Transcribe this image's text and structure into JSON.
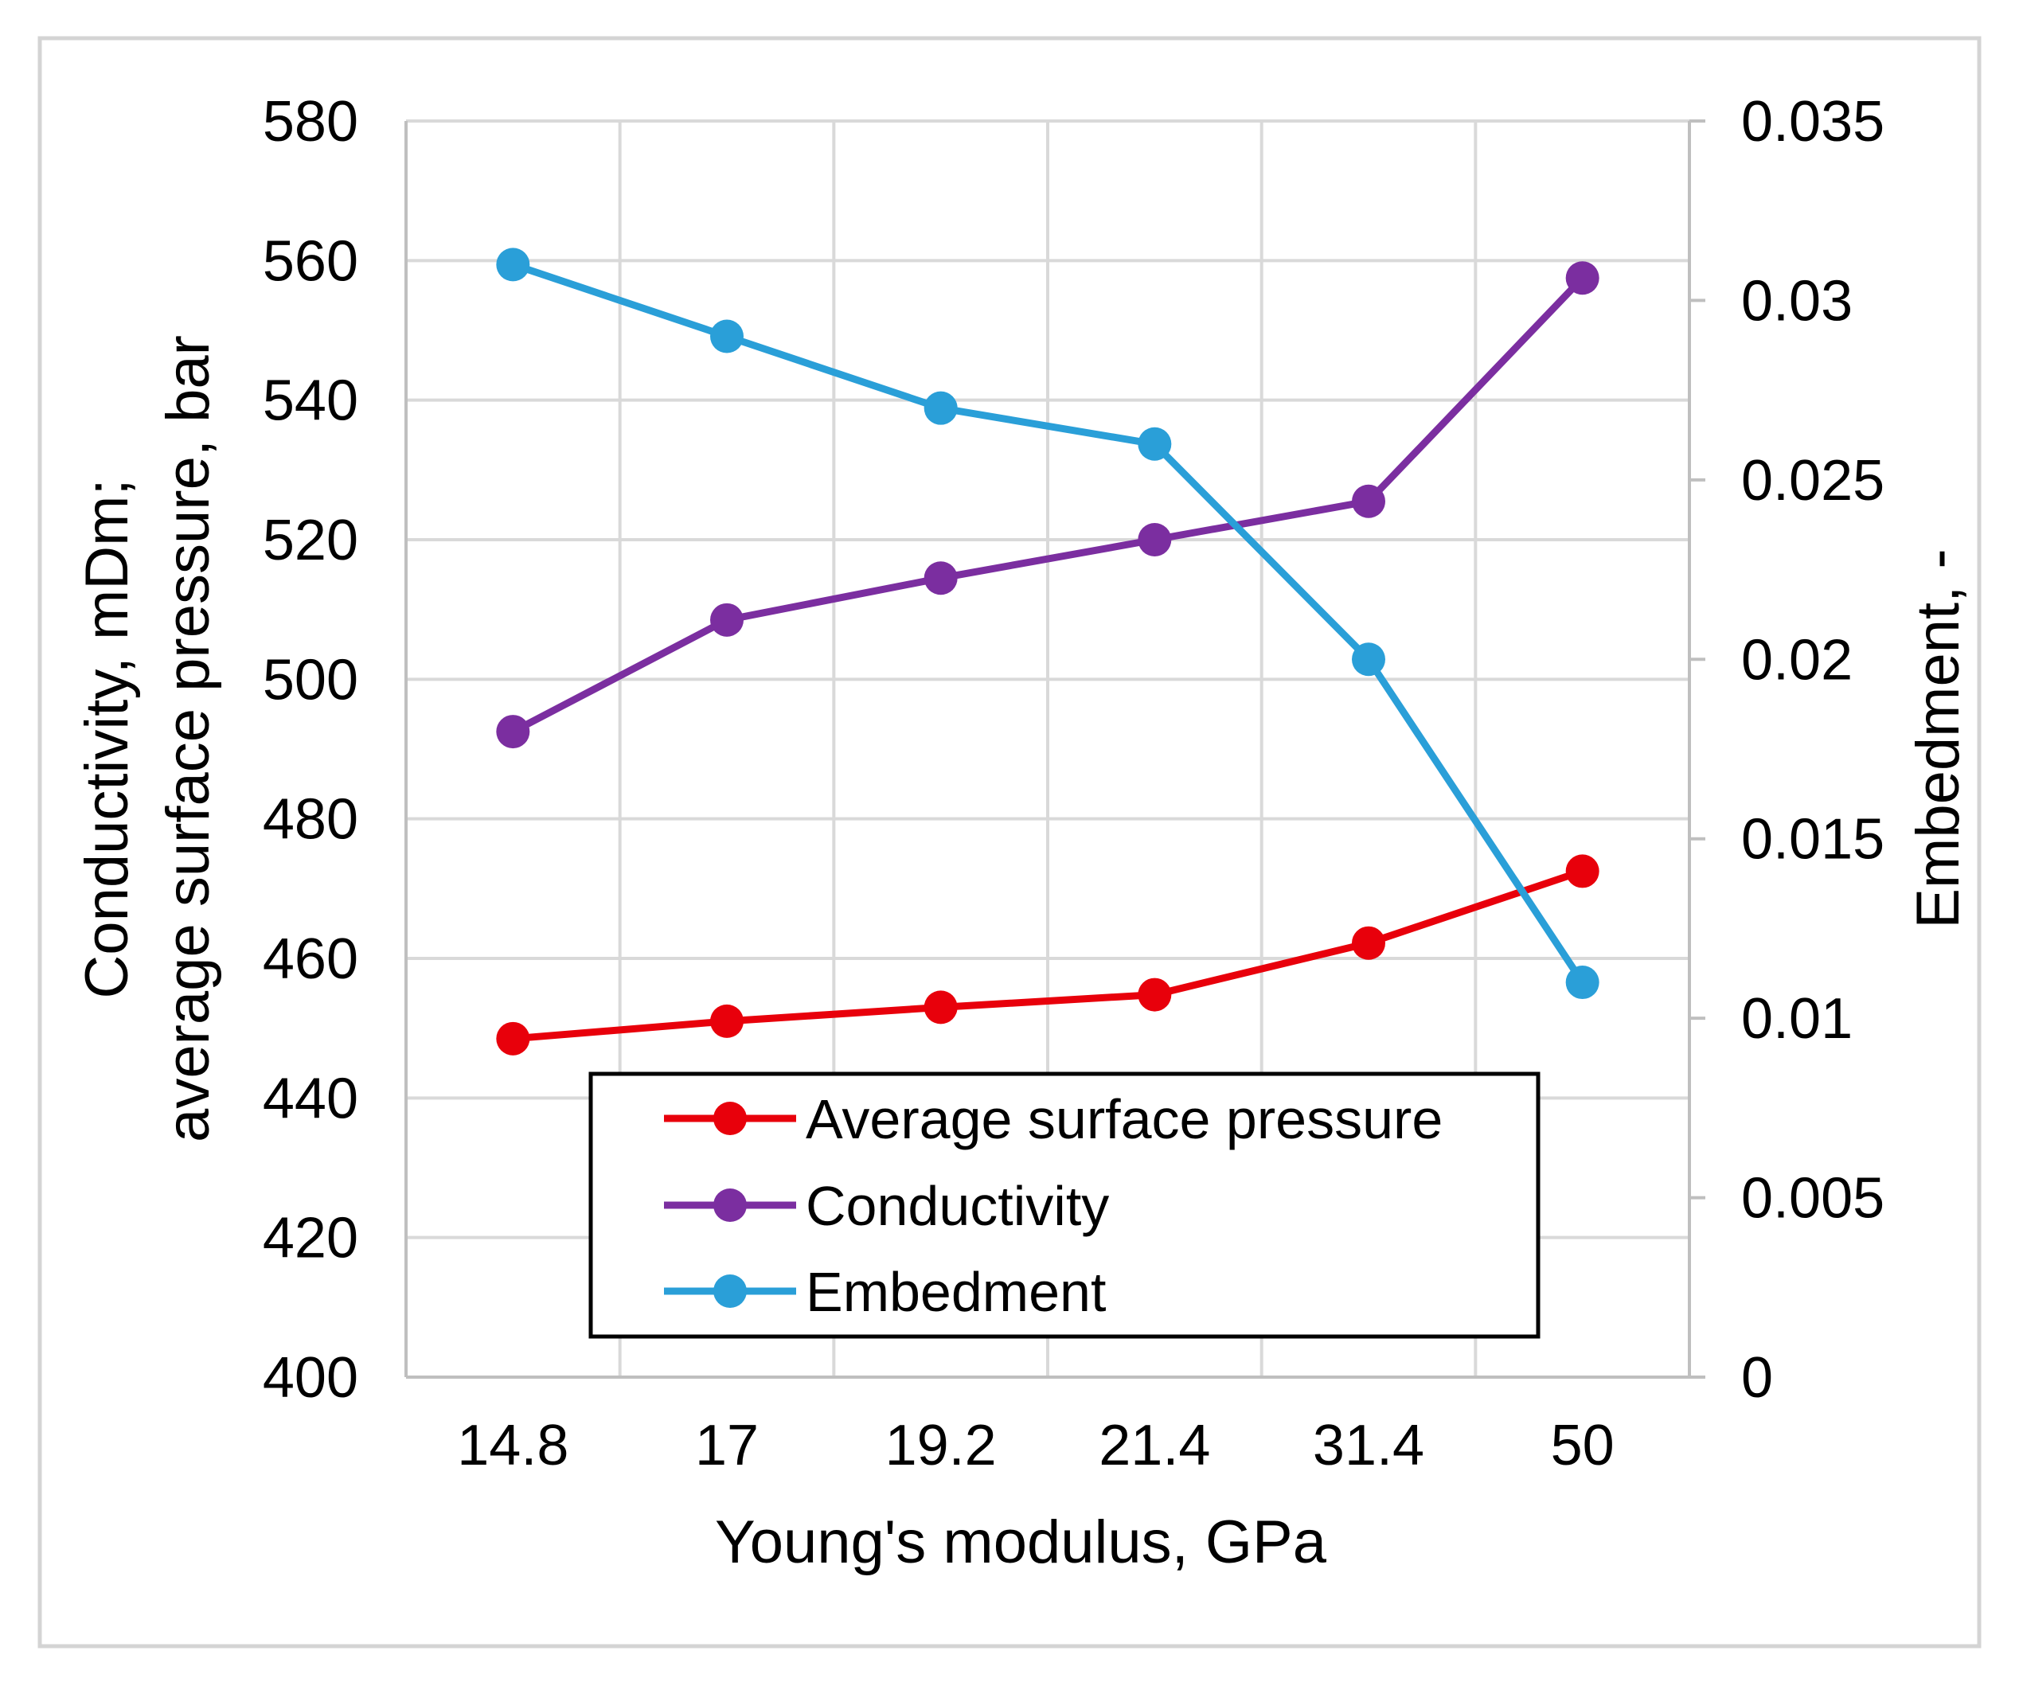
{
  "chart_data": {
    "type": "line",
    "title": "",
    "xlabel": "Young's modulus, GPa",
    "ylabel_line1": "Conductivity, mDm;",
    "ylabel_line2": "average surface pressure, bar",
    "y2label": "Embedment, -",
    "categories": [
      "14.8",
      "17",
      "19.2",
      "21.4",
      "31.4",
      "50"
    ],
    "ylim": [
      400,
      580
    ],
    "yticks": [
      400,
      420,
      440,
      460,
      480,
      500,
      520,
      540,
      560,
      580
    ],
    "ytick_labels": [
      "400",
      "420",
      "440",
      "460",
      "480",
      "500",
      "520",
      "540",
      "560",
      "580"
    ],
    "y2lim": [
      0,
      0.035
    ],
    "y2ticks": [
      0,
      0.005,
      0.01,
      0.015,
      0.02,
      0.025,
      0.03,
      0.035
    ],
    "y2tick_labels": [
      "0",
      "0.005",
      "0.01",
      "0.015",
      "0.02",
      "0.025",
      "0.03",
      "0.035"
    ],
    "grid": true,
    "legend_position": "bottom-center",
    "series": [
      {
        "name": "Average surface pressure",
        "axis": "left",
        "color": "#e8000b",
        "values": [
          448.5,
          451,
          453,
          454.8,
          462.2,
          472.5
        ]
      },
      {
        "name": "Conductivity",
        "axis": "left",
        "color": "#7b2ea0",
        "values": [
          492.5,
          508.5,
          514.5,
          520,
          525.5,
          557.5
        ]
      },
      {
        "name": "Embedment",
        "axis": "right",
        "color": "#2a9fd8",
        "values": [
          0.031,
          0.029,
          0.027,
          0.026,
          0.02,
          0.011
        ]
      }
    ]
  }
}
